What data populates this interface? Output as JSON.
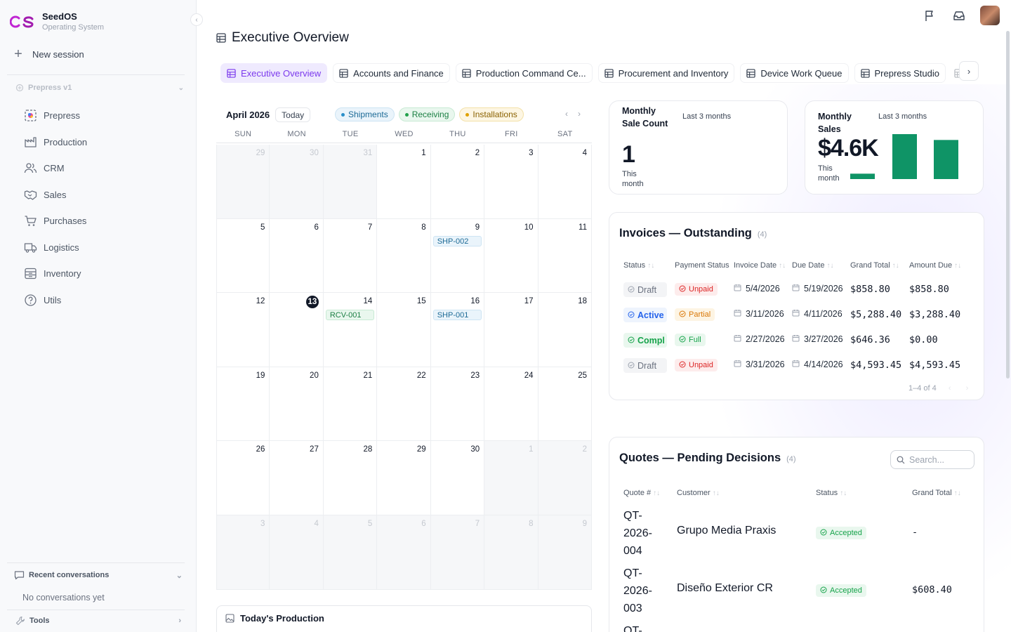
{
  "app": {
    "name": "SeedOS",
    "subtitle": "Operating System"
  },
  "sidebar": {
    "new_session": "New session",
    "group_label": "Prepress v1",
    "items": [
      {
        "label": "Prepress",
        "icon": "prepress-icon"
      },
      {
        "label": "Production",
        "icon": "factory-icon"
      },
      {
        "label": "CRM",
        "icon": "users-icon"
      },
      {
        "label": "Sales",
        "icon": "handshake-icon"
      },
      {
        "label": "Purchases",
        "icon": "cart-icon"
      },
      {
        "label": "Logistics",
        "icon": "truck-icon"
      },
      {
        "label": "Inventory",
        "icon": "inventory-icon"
      },
      {
        "label": "Utils",
        "icon": "help-icon"
      }
    ],
    "recent_label": "Recent conversations",
    "no_conversations": "No conversations yet",
    "tools_label": "Tools"
  },
  "page": {
    "title": "Executive Overview"
  },
  "tabs": [
    {
      "label": "Executive Overview",
      "active": true
    },
    {
      "label": "Accounts and Finance"
    },
    {
      "label": "Production Command Ce..."
    },
    {
      "label": "Procurement and Inventory"
    },
    {
      "label": "Device Work Queue"
    },
    {
      "label": "Prepress Studio"
    }
  ],
  "calendar": {
    "month": "April 2026",
    "today_label": "Today",
    "legend": [
      {
        "label": "Shipments",
        "color": "#2b8fc9"
      },
      {
        "label": "Receiving",
        "color": "#22a04b"
      },
      {
        "label": "Installations",
        "color": "#e0a100"
      }
    ],
    "weekdays": [
      "SUN",
      "MON",
      "TUE",
      "WED",
      "THU",
      "FRI",
      "SAT"
    ],
    "days": [
      {
        "d": "29",
        "out": true
      },
      {
        "d": "30",
        "out": true
      },
      {
        "d": "31",
        "out": true
      },
      {
        "d": "1"
      },
      {
        "d": "2"
      },
      {
        "d": "3"
      },
      {
        "d": "4"
      },
      {
        "d": "5"
      },
      {
        "d": "6"
      },
      {
        "d": "7"
      },
      {
        "d": "8"
      },
      {
        "d": "9",
        "event": "SHP-002",
        "type": "ship"
      },
      {
        "d": "10"
      },
      {
        "d": "11"
      },
      {
        "d": "12"
      },
      {
        "d": "13",
        "today": true
      },
      {
        "d": "14",
        "event": "RCV-001",
        "type": "recv"
      },
      {
        "d": "15"
      },
      {
        "d": "16",
        "event": "SHP-001",
        "type": "ship"
      },
      {
        "d": "17"
      },
      {
        "d": "18"
      },
      {
        "d": "19"
      },
      {
        "d": "20"
      },
      {
        "d": "21"
      },
      {
        "d": "22"
      },
      {
        "d": "23"
      },
      {
        "d": "24"
      },
      {
        "d": "25"
      },
      {
        "d": "26"
      },
      {
        "d": "27"
      },
      {
        "d": "28"
      },
      {
        "d": "29"
      },
      {
        "d": "30"
      },
      {
        "d": "1",
        "out": true
      },
      {
        "d": "2",
        "out": true
      },
      {
        "d": "3",
        "out": true
      },
      {
        "d": "4",
        "out": true
      },
      {
        "d": "5",
        "out": true
      },
      {
        "d": "6",
        "out": true
      },
      {
        "d": "7",
        "out": true
      },
      {
        "d": "8",
        "out": true
      },
      {
        "d": "9",
        "out": true
      }
    ]
  },
  "todays_production": {
    "title": "Today's Production"
  },
  "metric_count": {
    "label": "Monthly Sale Count",
    "period": "Last 3 months",
    "value": "1",
    "sub": "This month"
  },
  "metric_sales": {
    "label": "Monthly Sales",
    "period": "Last 3 months",
    "value": "$4.6K",
    "sub": "This month",
    "bar_color": "#0f9466",
    "bars": [
      0.12,
      1.0,
      0.87
    ]
  },
  "invoices": {
    "title": "Invoices — Outstanding",
    "count": "(4)",
    "columns": [
      "Status",
      "Payment Status",
      "Invoice Date",
      "Due Date",
      "Grand Total",
      "Amount Due"
    ],
    "rows": [
      {
        "status": "Draft",
        "status_type": "draft",
        "payment": "Unpaid",
        "payment_type": "unpaid",
        "invoice_date": "5/4/2026",
        "due_date": "5/19/2026",
        "grand_total": "$858.80",
        "amount_due": "$858.80"
      },
      {
        "status": "Active",
        "status_type": "active",
        "payment": "Partial",
        "payment_type": "partial",
        "invoice_date": "3/11/2026",
        "due_date": "4/11/2026",
        "grand_total": "$5,288.40",
        "amount_due": "$3,288.40"
      },
      {
        "status": "Compl",
        "status_type": "compl",
        "payment": "Full",
        "payment_type": "full",
        "invoice_date": "2/27/2026",
        "due_date": "3/27/2026",
        "grand_total": "$646.36",
        "amount_due": "$0.00"
      },
      {
        "status": "Draft",
        "status_type": "draft",
        "payment": "Unpaid",
        "payment_type": "unpaid",
        "invoice_date": "3/31/2026",
        "due_date": "4/14/2026",
        "grand_total": "$4,593.45",
        "amount_due": "$4,593.45"
      }
    ],
    "pager": "1–4 of 4"
  },
  "quotes": {
    "title": "Quotes — Pending Decisions",
    "count": "(4)",
    "search_placeholder": "Search...",
    "columns": [
      "Quote #",
      "Customer",
      "Status",
      "Grand Total"
    ],
    "rows": [
      {
        "quote": "QT-2026-004",
        "customer": "Grupo Media Praxis",
        "status": "Accepted",
        "total": "-"
      },
      {
        "quote": "QT-2026-003",
        "customer": "Diseño Exterior CR",
        "status": "Accepted",
        "total": "$608.40"
      },
      {
        "quote": "QT-",
        "customer": "",
        "status": "",
        "total": ""
      }
    ]
  }
}
